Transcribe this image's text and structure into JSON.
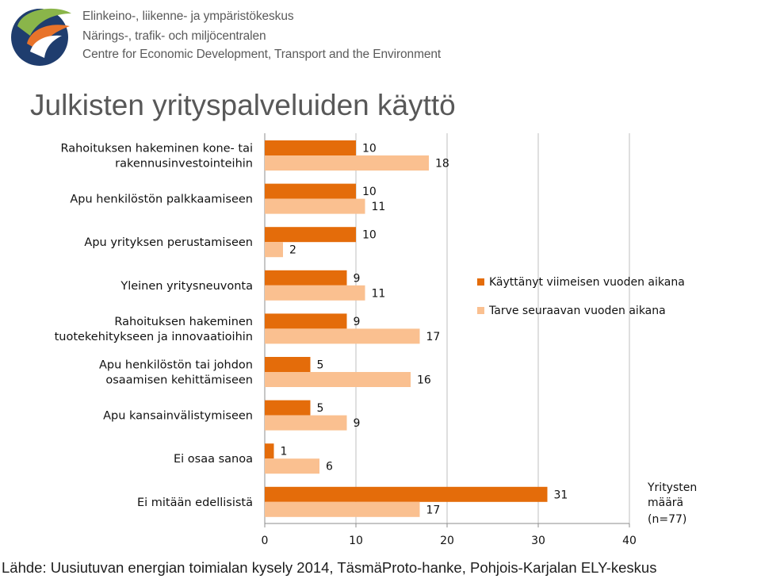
{
  "header": {
    "org_lines": [
      "Elinkeino-, liikenne- ja ympäristökeskus",
      "Närings-, trafik- och miljöcentralen",
      "Centre for Economic Development, Transport and the Environment"
    ],
    "logo_icon": "ely-centre-logo"
  },
  "title": "Julkisten yrityspalveluiden käyttö",
  "colors": {
    "series1": "#e46c0a",
    "series2": "#fac090",
    "grid": "#bfbfbf",
    "axis": "#8c8c8c",
    "logo_green": "#8ab54a",
    "logo_orange": "#e8732a",
    "logo_navy": "#1f3d6e"
  },
  "chart_data": {
    "type": "bar",
    "orientation": "horizontal",
    "categories": [
      [
        "Rahoituksen hakeminen kone- tai",
        "rakennusinvestointeihin"
      ],
      [
        "Apu henkilöstön palkkaamiseen"
      ],
      [
        "Apu yrityksen perustamiseen"
      ],
      [
        "Yleinen yritysneuvonta"
      ],
      [
        "Rahoituksen hakeminen",
        "tuotekehitykseen ja innovaatioihin"
      ],
      [
        "Apu henkilöstön tai johdon",
        "osaamisen kehittämiseen"
      ],
      [
        "Apu kansainvälistymiseen"
      ],
      [
        "Ei osaa sanoa"
      ],
      [
        "Ei mitään edellisistä"
      ]
    ],
    "series": [
      {
        "name": "Käyttänyt viimeisen vuoden aikana",
        "values": [
          10,
          10,
          10,
          9,
          9,
          5,
          5,
          1,
          31
        ]
      },
      {
        "name": "Tarve seuraavan vuoden aikana",
        "values": [
          18,
          11,
          2,
          11,
          17,
          16,
          9,
          6,
          17
        ]
      }
    ],
    "x_ticks": [
      "0",
      "10",
      "20",
      "30",
      "40"
    ],
    "xlim": [
      0,
      40
    ],
    "grid": true,
    "legend_position": "right",
    "note_lines": [
      "Yritysten",
      "määrä",
      "(n=77)"
    ]
  },
  "source": "Lähde: Uusiutuvan energian toimialan kysely 2014, TäsmäProto-hanke, Pohjois-Karjalan ELY-keskus"
}
